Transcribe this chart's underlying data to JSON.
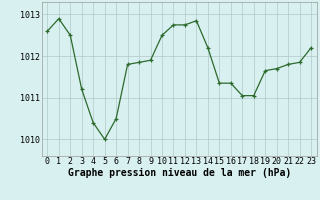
{
  "x": [
    0,
    1,
    2,
    3,
    4,
    5,
    6,
    7,
    8,
    9,
    10,
    11,
    12,
    13,
    14,
    15,
    16,
    17,
    18,
    19,
    20,
    21,
    22,
    23
  ],
  "y": [
    1012.6,
    1012.9,
    1012.5,
    1011.2,
    1010.4,
    1010.0,
    1010.5,
    1011.8,
    1011.85,
    1011.9,
    1012.5,
    1012.75,
    1012.75,
    1012.85,
    1012.2,
    1011.35,
    1011.35,
    1011.05,
    1011.05,
    1011.65,
    1011.7,
    1011.8,
    1011.85,
    1012.2
  ],
  "line_color": "#2d6a2d",
  "marker": "+",
  "bg_color": "#d8f0f0",
  "grid_color": "#b0c8c8",
  "xlabel": "Graphe pression niveau de la mer (hPa)",
  "xtick_labels": [
    "0",
    "1",
    "2",
    "3",
    "4",
    "5",
    "6",
    "7",
    "8",
    "9",
    "10",
    "11",
    "12",
    "13",
    "14",
    "15",
    "16",
    "17",
    "18",
    "19",
    "20",
    "21",
    "22",
    "23"
  ],
  "ytick_labels": [
    "1010",
    "1011",
    "1012",
    "1013"
  ],
  "yticks": [
    1010,
    1011,
    1012,
    1013
  ],
  "ylim": [
    1009.6,
    1013.3
  ],
  "xlim": [
    -0.5,
    23.5
  ],
  "xlabel_fontsize": 7,
  "tick_fontsize": 6
}
